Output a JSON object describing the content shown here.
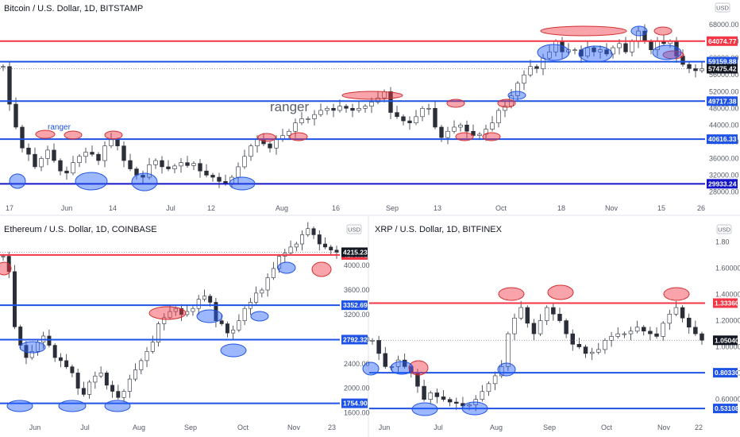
{
  "chart_data": [
    {
      "type": "candlestick",
      "title": "Bitcoin / U.S. Dollar, 1D, BITSTAMP",
      "currency": "USD",
      "x_tick_labels": [
        "17",
        "Jun",
        "14",
        "Jul",
        "12",
        "Aug",
        "16",
        "Sep",
        "13",
        "Oct",
        "18",
        "Nov",
        "15",
        "26"
      ],
      "y_tick_labels": [
        "68000.00",
        "64000.00",
        "60000.00",
        "56000.00",
        "52000.00",
        "48000.00",
        "44000.00",
        "40000.00",
        "36000.00",
        "32000.00",
        "28000.00"
      ],
      "y_ticks": [
        68000,
        64000,
        60000,
        56000,
        52000,
        48000,
        44000,
        40000,
        36000,
        32000,
        28000
      ],
      "ylim": [
        26000,
        70500
      ],
      "levels": [
        {
          "value": 64074.77,
          "label": "64074.77",
          "color": "#f23645"
        },
        {
          "value": 59159.88,
          "label": "59159.88",
          "color": "#1e53e5"
        },
        {
          "value": 49717.38,
          "label": "49717.38",
          "color": "#1e53e5"
        },
        {
          "value": 40616.33,
          "label": "40616.33",
          "color": "#1e53e5"
        },
        {
          "value": 29933.24,
          "label": "29933.24",
          "color": "#1616c8"
        }
      ],
      "last_price": {
        "value": 57475.42,
        "label": "57475.42"
      },
      "annotations": [
        "ranger",
        "ranger"
      ],
      "prices": [
        58000,
        49000,
        43500,
        38500,
        37000,
        34000,
        36000,
        38000,
        35500,
        33000,
        32500,
        35000,
        36500,
        37500,
        37000,
        35500,
        39000,
        40500,
        39000,
        35500,
        33500,
        32000,
        31500,
        34500,
        35500,
        34000,
        33500,
        34200,
        35000,
        34300,
        34800,
        33000,
        32000,
        31500,
        30500,
        30000,
        31500,
        34000,
        36500,
        39000,
        40500,
        39500,
        38500,
        40500,
        41500,
        42500,
        44500,
        45500,
        45500,
        46500,
        47500,
        48000,
        47500,
        48500,
        48000,
        47500,
        48000,
        48500,
        49500,
        50500,
        52000,
        47000,
        46000,
        45000,
        44500,
        46000,
        48000,
        48000,
        43500,
        41000,
        42500,
        43500,
        44000,
        42500,
        41500,
        41800,
        43000,
        44500,
        47500,
        48500,
        51000,
        54000,
        56000,
        58000,
        57500,
        60000,
        61500,
        64000,
        61500,
        62000,
        62000,
        60500,
        62500,
        61500,
        62000,
        61000,
        62500,
        63500,
        61500,
        64000,
        66500,
        64000,
        62000,
        64000,
        63500,
        64000,
        60500,
        58500,
        57500,
        57000,
        57475
      ],
      "ellipses_note": "red and blue ellipses mark touches of the horizontal levels"
    },
    {
      "type": "candlestick",
      "title": "Ethereum / U.S. Dollar, 1D, COINBASE",
      "currency": "USD",
      "x_tick_labels": [
        "Jun",
        "Jul",
        "Aug",
        "Sep",
        "Oct",
        "Nov",
        "23"
      ],
      "y_tick_labels": [
        "4000.00",
        "3600.00",
        "3200.00",
        "2800.00",
        "2400.00",
        "2000.00",
        "1600.00"
      ],
      "y_ticks": [
        4000,
        3600,
        3200,
        2800,
        2400,
        2000,
        1600
      ],
      "ylim": [
        1530,
        4480
      ],
      "levels": [
        {
          "value": 4170.51,
          "label": "4170.51",
          "color": "#f23645"
        },
        {
          "value": 3352.69,
          "label": "3352.69",
          "color": "#1e53e5"
        },
        {
          "value": 2792.32,
          "label": "2792.32",
          "color": "#1e53e5"
        },
        {
          "value": 1754.9,
          "label": "1754.90",
          "color": "#1e53e5"
        }
      ],
      "last_price": {
        "value": 4215.23,
        "label": "4215.23"
      },
      "prices": [
        4150,
        3900,
        3000,
        2700,
        2500,
        2600,
        2750,
        2850,
        2700,
        2500,
        2450,
        2350,
        2250,
        2000,
        1900,
        2100,
        2200,
        2250,
        2050,
        1950,
        1850,
        1950,
        2150,
        2300,
        2450,
        2600,
        2750,
        3050,
        3150,
        3250,
        3300,
        3200,
        3250,
        3300,
        3450,
        3500,
        3400,
        3100,
        3050,
        2900,
        2950,
        3100,
        3300,
        3400,
        3550,
        3600,
        3800,
        3950,
        4150,
        4200,
        4300,
        4350,
        4500,
        4600,
        4500,
        4350,
        4300,
        4250,
        4215
      ]
    },
    {
      "type": "candlestick",
      "title": "XRP / U.S. Dollar, 1D, BITFINEX",
      "currency": "USD",
      "x_tick_labels": [
        "Jun",
        "Jul",
        "Aug",
        "Sep",
        "Oct",
        "Nov",
        "22"
      ],
      "y_tick_labels": [
        "1.80",
        "1.60000",
        "1.40000",
        "1.20000",
        "1.00000",
        "0.80000",
        "0.60000"
      ],
      "y_ticks": [
        1.8,
        1.6,
        1.4,
        1.2,
        1.0,
        0.8,
        0.6
      ],
      "ylim": [
        0.465,
        1.845
      ],
      "levels": [
        {
          "value": 1.3336,
          "label": "1.33360",
          "color": "#f23645"
        },
        {
          "value": 0.8033,
          "label": "0.80330",
          "color": "#1e53e5"
        },
        {
          "value": 0.53108,
          "label": "0.53108",
          "color": "#1e53e5"
        }
      ],
      "last_price": {
        "value": 1.0504,
        "label": "1.05040"
      },
      "prices": [
        1.05,
        0.95,
        0.85,
        0.85,
        0.9,
        0.85,
        0.8,
        0.7,
        0.6,
        0.65,
        0.62,
        0.6,
        0.58,
        0.57,
        0.55,
        0.56,
        0.6,
        0.66,
        0.72,
        0.78,
        0.85,
        1.1,
        1.22,
        1.3,
        1.18,
        1.1,
        1.2,
        1.3,
        1.25,
        1.2,
        1.1,
        1.02,
        1.0,
        0.95,
        0.96,
        0.98,
        1.05,
        1.08,
        1.1,
        1.1,
        1.12,
        1.15,
        1.12,
        1.1,
        1.08,
        1.18,
        1.25,
        1.3,
        1.22,
        1.15,
        1.1,
        1.05
      ]
    }
  ]
}
